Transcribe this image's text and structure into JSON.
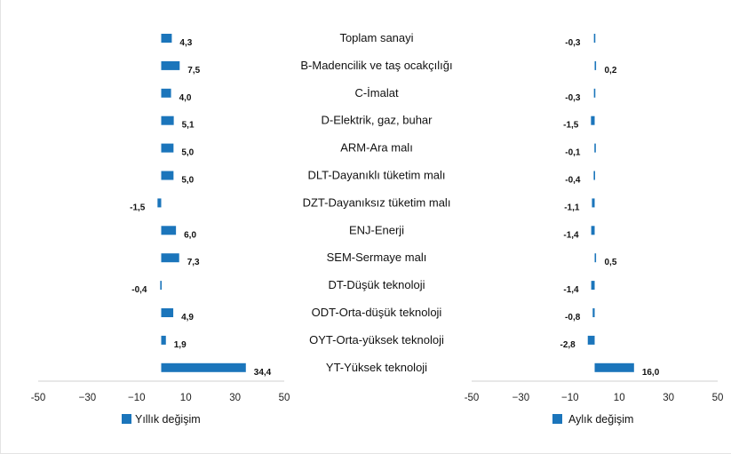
{
  "chart_data": {
    "type": "bar",
    "orientation": "horizontal",
    "categories": [
      "Toplam sanayi",
      "B-Madencilik ve taş ocakçılığı",
      "C-İmalat",
      "D-Elektrik, gaz, buhar",
      "ARM-Ara malı",
      "DLT-Dayanıklı tüketim malı",
      "DZT-Dayanıksız tüketim malı",
      "ENJ-Enerji",
      "SEM-Sermaye malı",
      "DT-Düşük teknoloji",
      "ODT-Orta-düşük teknoloji",
      "OYT-Orta-yüksek teknoloji",
      "YT-Yüksek teknoloji"
    ],
    "series": [
      {
        "name": "Yıllık değişim",
        "values": [
          4.3,
          7.5,
          4.0,
          5.1,
          5.0,
          5.0,
          -1.5,
          6.0,
          7.3,
          -0.4,
          4.9,
          1.9,
          34.4
        ],
        "labels": [
          "4,3",
          "7,5",
          "4,0",
          "5,1",
          "5,0",
          "5,0",
          "-1,5",
          "6,0",
          "7,3",
          "-0,4",
          "4,9",
          "1,9",
          "34,4"
        ]
      },
      {
        "name": "Aylık değişim",
        "values": [
          -0.3,
          0.2,
          -0.3,
          -1.5,
          -0.1,
          -0.4,
          -1.1,
          -1.4,
          0.5,
          -1.4,
          -0.8,
          -2.8,
          16.0
        ],
        "labels": [
          "-0,3",
          "0,2",
          "-0,3",
          "-1,5",
          "-0,1",
          "-0,4",
          "-1,1",
          "-1,4",
          "0,5",
          "-1,4",
          "-0,8",
          "-2,8",
          "16,0"
        ]
      }
    ],
    "xlim": [
      -50,
      50
    ],
    "ticks": [
      -50,
      -30,
      -10,
      10,
      30,
      50
    ],
    "tick_labels": [
      "-50",
      "−30",
      "−10",
      "10",
      "30",
      "50"
    ],
    "bar_color": "#1b75bb"
  }
}
